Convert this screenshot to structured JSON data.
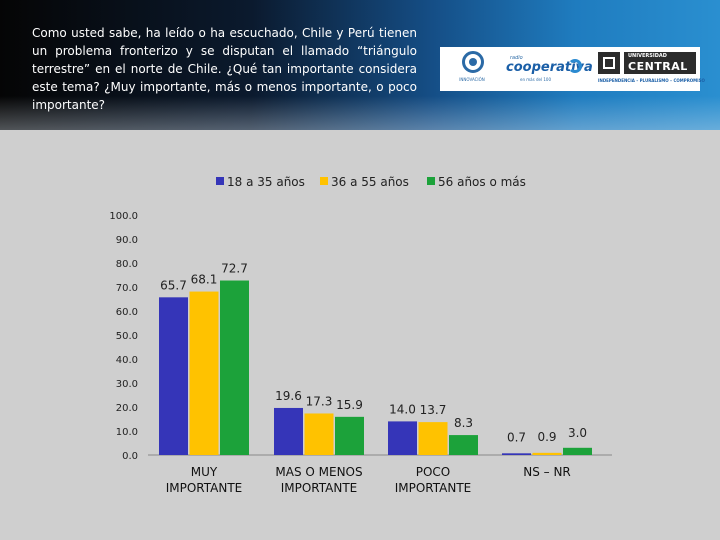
{
  "header": {
    "question": "Como usted sabe, ha leído o ha escuchado, Chile y Perú tienen un problema fronterizo y se disputan el llamado “triángulo terrestre” en el norte de Chile. ¿Qué tan importante considera este tema? ¿Muy importante, más o menos importante, o poco importante?"
  },
  "logos": {
    "institute": {
      "name": "INNOVACIÓN"
    },
    "cooperativa": {
      "small": "radio",
      "name": "cooperativa",
      "tag": "en más del 100"
    },
    "universidad": {
      "line1": "UNIVERSIDAD",
      "line2": "CENTRAL",
      "motto": "INDEPENDENCIA – PLURALISMO – COMPROMISO"
    }
  },
  "colors": {
    "series1": "#3535b8",
    "series2": "#ffc200",
    "series3": "#1ca23a"
  },
  "chart_data": {
    "type": "bar",
    "categories": [
      "MUY\nIMPORTANTE",
      "MAS O MENOS\nIMPORTANTE",
      "POCO\nIMPORTANTE",
      "NS – NR"
    ],
    "series": [
      {
        "name": "18 a 35 años",
        "values": [
          65.7,
          19.6,
          14.0,
          0.7
        ],
        "labels": [
          "65.7",
          "19.6",
          "14.0",
          "0.7"
        ]
      },
      {
        "name": "36 a 55 años",
        "values": [
          68.1,
          17.3,
          13.7,
          0.9
        ],
        "labels": [
          "68.1",
          "17.3",
          "13.7",
          "0.9"
        ]
      },
      {
        "name": "56 años o más",
        "values": [
          72.7,
          15.9,
          8.3,
          3.0
        ],
        "labels": [
          "72.7",
          "15.9",
          "8.3",
          "3.0"
        ]
      }
    ],
    "yticks": [
      "0.0",
      "10.0",
      "20.0",
      "30.0",
      "40.0",
      "50.0",
      "60.0",
      "70.0",
      "80.0",
      "90.0",
      "100.0"
    ],
    "ylim": [
      0,
      100
    ],
    "legend_position": "top",
    "grid": false
  }
}
